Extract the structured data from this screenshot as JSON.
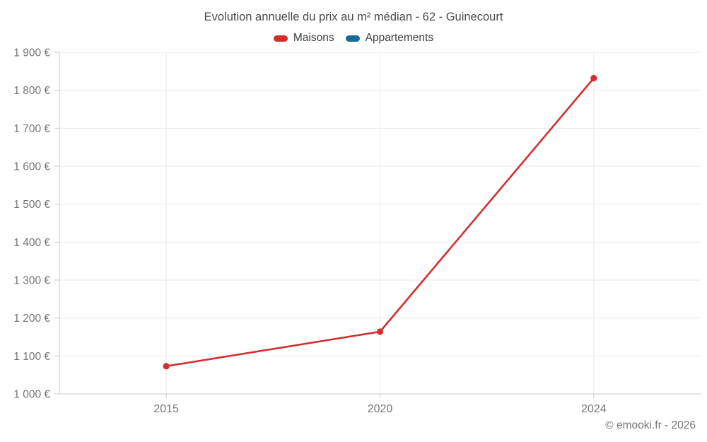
{
  "title": "Evolution annuelle du prix au m² médian - 62 - Guinecourt",
  "footer": "© emooki.fr - 2026",
  "legend": {
    "items": [
      {
        "label": "Maisons",
        "color": "#d32f2f"
      },
      {
        "label": "Appartements",
        "color": "#166a9c"
      }
    ]
  },
  "chart_data": {
    "type": "line",
    "title": "Evolution annuelle du prix au m² médian - 62 - Guinecourt",
    "categories": [
      "2015",
      "2020",
      "2024"
    ],
    "series": [
      {
        "name": "Maisons",
        "color": "#d32f2f",
        "values": [
          1073,
          1164,
          1832
        ]
      },
      {
        "name": "Appartements",
        "color": "#166a9c",
        "values": []
      }
    ],
    "xlabel": "",
    "ylabel": "",
    "ylim": [
      1000,
      1900
    ],
    "ytick_step": 100,
    "ytick_labels": [
      "1 000 €",
      "1 100 €",
      "1 200 €",
      "1 300 €",
      "1 400 €",
      "1 500 €",
      "1 600 €",
      "1 700 €",
      "1 800 €",
      "1 900 €"
    ],
    "grid": true,
    "legend_position": "top",
    "colors": {
      "gridline": "#e8e8e8",
      "axis": "#c9c9c9",
      "tick_text": "#757575",
      "title_text": "#4a4a4a"
    }
  }
}
